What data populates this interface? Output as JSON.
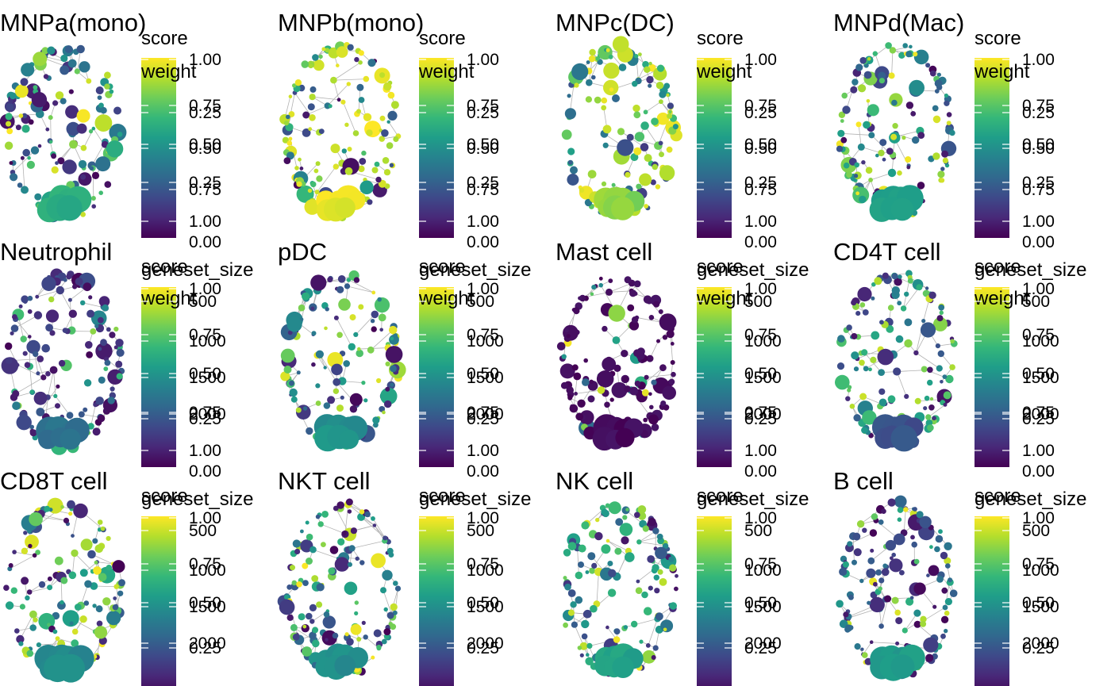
{
  "colors": {
    "colormap": "viridis",
    "edge": "#b3b3b3",
    "background": "#ffffff",
    "text": "#000000",
    "tick_mark": "#ffffff"
  },
  "chart_data": [
    {
      "type": "scatter",
      "title": "MNPa(mono)",
      "chart_kind": "network graph",
      "legend_titles": [
        "score",
        "weight"
      ],
      "legend_ticks": [
        "1.00",
        "0.75",
        "0.50",
        "0.25",
        "0.00",
        "0.25",
        "0.50",
        "0.75",
        "1.00"
      ],
      "color_range": [
        0,
        1
      ],
      "seed": 11,
      "color_mode": "mid",
      "big_cluster_score": 0.62
    },
    {
      "type": "scatter",
      "title": "MNPb(mono)",
      "chart_kind": "network graph",
      "legend_titles": [
        "score",
        "weight"
      ],
      "legend_ticks": [
        "1.00",
        "0.75",
        "0.50",
        "0.25",
        "0.00",
        "0.25",
        "0.50",
        "0.75",
        "1.00"
      ],
      "color_range": [
        0,
        1
      ],
      "seed": 23,
      "color_mode": "high",
      "big_cluster_score": 0.97
    },
    {
      "type": "scatter",
      "title": "MNPc(DC)",
      "chart_kind": "network graph",
      "legend_titles": [
        "score",
        "weight"
      ],
      "legend_ticks": [
        "1.00",
        "0.75",
        "0.50",
        "0.25",
        "0.00",
        "0.25",
        "0.50",
        "0.75",
        "1.00"
      ],
      "color_range": [
        0,
        1
      ],
      "seed": 37,
      "color_mode": "high-mid",
      "big_cluster_score": 0.82
    },
    {
      "type": "scatter",
      "title": "MNPd(Mac)",
      "chart_kind": "network graph",
      "legend_titles": [
        "score",
        "weight"
      ],
      "legend_ticks": [
        "1.00",
        "0.75",
        "0.50",
        "0.25",
        "0.00",
        "0.25",
        "0.50",
        "0.75",
        "1.00"
      ],
      "color_range": [
        0,
        1
      ],
      "seed": 41,
      "color_mode": "mid",
      "big_cluster_score": 0.55
    },
    {
      "type": "scatter",
      "title": "Neutrophil",
      "chart_kind": "network graph",
      "legend_titles": [
        "score",
        "geneset_size",
        "weight"
      ],
      "legend_ticks": [
        "1.00",
        "500",
        "0.75",
        "1000",
        "0.50",
        "1500",
        "0.75",
        "2000",
        "0.25",
        "1.00",
        "0.00"
      ],
      "color_range": [
        0,
        1
      ],
      "seed": 53,
      "color_mode": "low",
      "big_cluster_score": 0.38
    },
    {
      "type": "scatter",
      "title": "pDC",
      "chart_kind": "network graph",
      "legend_titles": [
        "score",
        "geneset_size",
        "weight"
      ],
      "legend_ticks": [
        "1.00",
        "500",
        "0.75",
        "1000",
        "0.50",
        "1500",
        "0.75",
        "2000",
        "0.25",
        "1.00",
        "0.00"
      ],
      "color_range": [
        0,
        1
      ],
      "seed": 67,
      "color_mode": "mid",
      "big_cluster_score": 0.5
    },
    {
      "type": "scatter",
      "title": "Mast cell",
      "chart_kind": "network graph",
      "legend_titles": [
        "score",
        "geneset_size",
        "weight"
      ],
      "legend_ticks": [
        "1.00",
        "500",
        "0.75",
        "1000",
        "0.50",
        "1500",
        "0.75",
        "2000",
        "0.25",
        "1.00",
        "0.00"
      ],
      "color_range": [
        0,
        1
      ],
      "seed": 71,
      "color_mode": "verylow",
      "big_cluster_score": 0.02
    },
    {
      "type": "scatter",
      "title": "CD4T cell",
      "chart_kind": "network graph",
      "legend_titles": [
        "score",
        "geneset_size",
        "weight"
      ],
      "legend_ticks": [
        "1.00",
        "500",
        "0.75",
        "1000",
        "0.50",
        "1500",
        "0.75",
        "2000",
        "0.25",
        "1.00",
        "0.00"
      ],
      "color_range": [
        0,
        1
      ],
      "seed": 83,
      "color_mode": "mid",
      "big_cluster_score": 0.25
    },
    {
      "type": "scatter",
      "title": "CD8T cell",
      "chart_kind": "network graph",
      "legend_titles": [
        "score",
        "geneset_size"
      ],
      "legend_ticks": [
        "1.00",
        "500",
        "0.75",
        "1000",
        "0.50",
        "1500",
        "2000",
        "0.25"
      ],
      "color_range": [
        0,
        1
      ],
      "seed": 97,
      "color_mode": "mid",
      "big_cluster_score": 0.48
    },
    {
      "type": "scatter",
      "title": "NKT cell",
      "chart_kind": "network graph",
      "legend_titles": [
        "score",
        "geneset_size"
      ],
      "legend_ticks": [
        "1.00",
        "500",
        "0.75",
        "1000",
        "0.50",
        "1500",
        "2000",
        "0.25"
      ],
      "color_range": [
        0,
        1
      ],
      "seed": 101,
      "color_mode": "mid",
      "big_cluster_score": 0.5
    },
    {
      "type": "scatter",
      "title": "NK cell",
      "chart_kind": "network graph",
      "legend_titles": [
        "score",
        "geneset_size"
      ],
      "legend_ticks": [
        "1.00",
        "500",
        "0.75",
        "1000",
        "0.50",
        "1500",
        "2000",
        "0.25"
      ],
      "color_range": [
        0,
        1
      ],
      "seed": 113,
      "color_mode": "mid",
      "big_cluster_score": 0.58
    },
    {
      "type": "scatter",
      "title": "B cell",
      "chart_kind": "network graph",
      "legend_titles": [
        "score",
        "geneset_size"
      ],
      "legend_ticks": [
        "1.00",
        "500",
        "0.75",
        "1000",
        "0.50",
        "1500",
        "2000",
        "0.25"
      ],
      "color_range": [
        0,
        1
      ],
      "seed": 127,
      "color_mode": "mid-low",
      "big_cluster_score": 0.55
    }
  ]
}
